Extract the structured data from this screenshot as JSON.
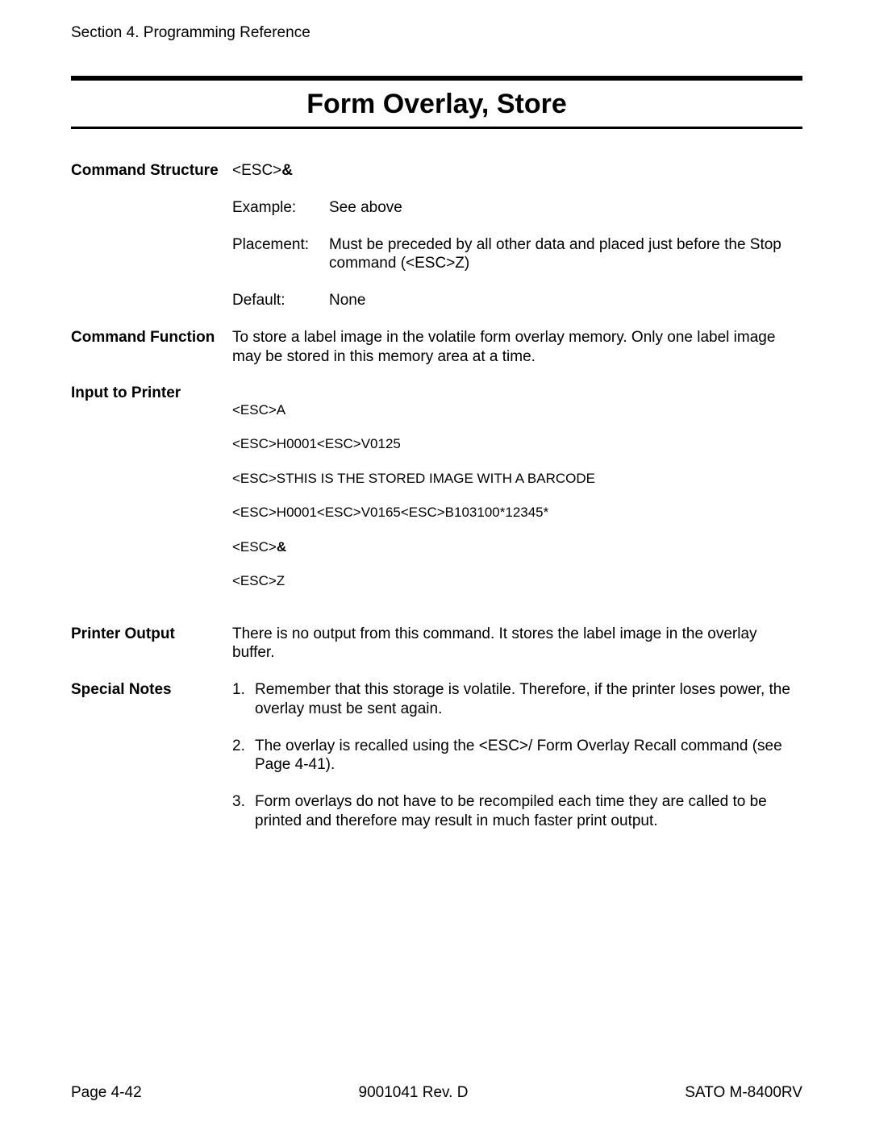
{
  "header": {
    "section": "Section 4. Programming Reference"
  },
  "title": "Form Overlay, Store",
  "rows": {
    "command_structure": {
      "label": "Command Structure",
      "syntax_prefix": "<ESC>",
      "syntax_bold": "&",
      "example_label": "Example:",
      "example_value": "See above",
      "placement_label": "Placement:",
      "placement_value": "Must be preceded by all other data and placed just before the Stop command (<ESC>Z)",
      "default_label": "Default:",
      "default_value": "None"
    },
    "command_function": {
      "label": "Command Function",
      "value": "To store a label image in the volatile form overlay memory. Only one label image may be stored in this memory area at a time."
    },
    "input_to_printer": {
      "label": "Input to Printer",
      "line1": "<ESC>A",
      "line2": "<ESC>H0001<ESC>V0125",
      "line3": "<ESC>STHIS IS THE STORED IMAGE WITH A BARCODE",
      "line4": "<ESC>H0001<ESC>V0165<ESC>B103100*12345*",
      "line5_prefix": "<ESC>",
      "line5_bold": "&",
      "line6": "<ESC>Z"
    },
    "printer_output": {
      "label": "Printer Output",
      "value": "There is no output from this command. It stores the label image in the overlay buffer."
    },
    "special_notes": {
      "label": "Special Notes",
      "notes": [
        {
          "num": "1.",
          "text": "Remember that this storage is volatile. Therefore, if the printer loses power, the overlay must be sent again."
        },
        {
          "num": "2.",
          "text": "The overlay is recalled using the <ESC>/ Form Overlay Recall command (see Page 4-41)."
        },
        {
          "num": "3.",
          "text": "Form overlays do not have to be recompiled each time they are called to be printed and therefore may result in much faster print output."
        }
      ]
    }
  },
  "footer": {
    "left": "Page 4-42",
    "center": "9001041 Rev. D",
    "right": "SATO M-8400RV"
  }
}
